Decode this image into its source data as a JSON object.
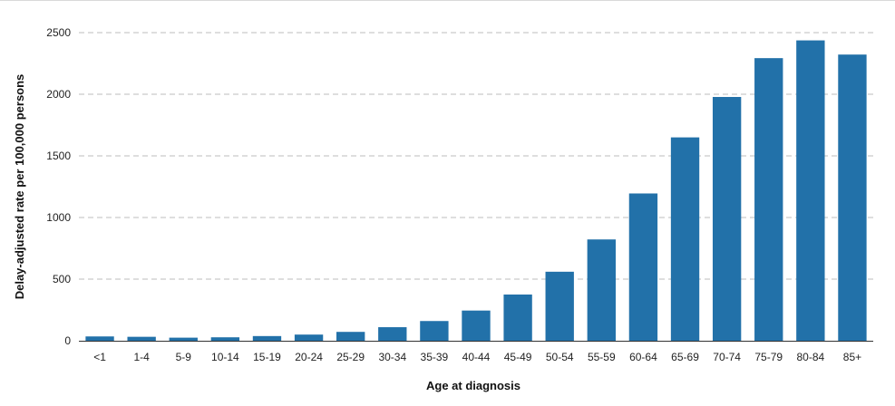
{
  "chart_data": {
    "type": "bar",
    "title": "",
    "xlabel": "Age at diagnosis",
    "ylabel": "Delay-adjusted rate per 100,000 persons",
    "categories": [
      "<1",
      "1-4",
      "5-9",
      "10-14",
      "15-19",
      "20-24",
      "25-29",
      "30-34",
      "35-39",
      "40-44",
      "45-49",
      "50-54",
      "55-59",
      "60-64",
      "65-69",
      "70-74",
      "75-79",
      "80-84",
      "85+"
    ],
    "values": [
      35,
      32,
      25,
      28,
      38,
      50,
      72,
      110,
      160,
      245,
      375,
      560,
      822,
      1195,
      1650,
      1978,
      2293,
      2437,
      2322
    ],
    "yticks": [
      0,
      500,
      1000,
      1500,
      2000,
      2500
    ],
    "ylim": [
      0,
      2500
    ],
    "grid": true,
    "bar_color": "#2271a9",
    "grid_color": "#bdbdbd"
  }
}
